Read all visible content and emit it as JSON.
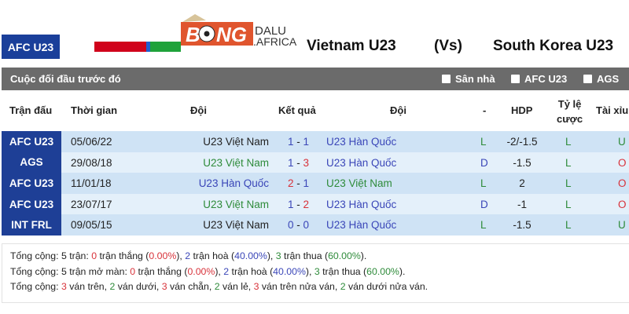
{
  "header": {
    "competition": "AFC U23",
    "logo_text": "BONGDALU AFRICA",
    "home": "Vietnam U23",
    "vs": "(Vs)",
    "away": "South Korea U23",
    "flag_colors": [
      "#d0021b",
      "#1f5fd0",
      "#1fa23a"
    ]
  },
  "section": {
    "title": "Cuộc đối đầu trước đó",
    "filters": [
      {
        "label": "Sân nhà",
        "checked": false
      },
      {
        "label": "AFC U23",
        "checked": false
      },
      {
        "label": "AGS",
        "checked": false
      }
    ]
  },
  "columns": {
    "match": "Trận đấu",
    "time": "Thời gian",
    "home": "Đội",
    "result": "Kết quả",
    "away": "Đội",
    "dash": "-",
    "hdp": "HDP",
    "odds_1": "Tỷ lệ",
    "odds_2": "cược",
    "ou": "Tài xỉu"
  },
  "rows": [
    {
      "comp": "AFC U23",
      "date": "05/06/22",
      "home": "U23 Việt Nam",
      "hc": "k",
      "hs": "1",
      "as": "1",
      "hsc": "b",
      "asc": "b",
      "away": "U23 Hàn Quốc",
      "ac": "b",
      "res": "L",
      "resc": "g",
      "hdp": "-2/-1.5",
      "odds": "L",
      "ou": "U",
      "ouc": "g"
    },
    {
      "comp": "AGS",
      "date": "29/08/18",
      "home": "U23 Việt Nam",
      "hc": "g",
      "hs": "1",
      "as": "3",
      "hsc": "b",
      "asc": "r",
      "away": "U23 Hàn Quốc",
      "ac": "b",
      "res": "D",
      "resc": "b",
      "hdp": "-1.5",
      "odds": "L",
      "ou": "O",
      "ouc": "r"
    },
    {
      "comp": "AFC U23",
      "date": "11/01/18",
      "home": "U23 Hàn Quốc",
      "hc": "b",
      "hs": "2",
      "as": "1",
      "hsc": "r",
      "asc": "b",
      "away": "U23 Việt Nam",
      "ac": "g",
      "res": "L",
      "resc": "g",
      "hdp": "2",
      "odds": "L",
      "ou": "O",
      "ouc": "r"
    },
    {
      "comp": "AFC U23",
      "date": "23/07/17",
      "home": "U23 Việt Nam",
      "hc": "g",
      "hs": "1",
      "as": "2",
      "hsc": "b",
      "asc": "r",
      "away": "U23 Hàn Quốc",
      "ac": "b",
      "res": "D",
      "resc": "b",
      "hdp": "-1",
      "odds": "L",
      "ou": "O",
      "ouc": "r"
    },
    {
      "comp": "INT FRL",
      "date": "09/05/15",
      "home": "U23 Việt Nam",
      "hc": "k",
      "hs": "0",
      "as": "0",
      "hsc": "b",
      "asc": "b",
      "away": "U23 Hàn Quốc",
      "ac": "b",
      "res": "L",
      "resc": "g",
      "hdp": "-1.5",
      "odds": "L",
      "ou": "U",
      "ouc": "g"
    }
  ],
  "summary": [
    [
      [
        "Tổng cộng: 5 trận: ",
        "k"
      ],
      [
        "0",
        "r"
      ],
      [
        " trận thắng (",
        "k"
      ],
      [
        "0.00%",
        "r"
      ],
      [
        "), ",
        "k"
      ],
      [
        "2",
        "b"
      ],
      [
        " trận hoà (",
        "k"
      ],
      [
        "40.00%",
        "b"
      ],
      [
        "), ",
        "k"
      ],
      [
        "3",
        "g"
      ],
      [
        " trận thua (",
        "k"
      ],
      [
        "60.00%",
        "g"
      ],
      [
        ").",
        "k"
      ]
    ],
    [
      [
        "Tổng cộng: 5 trận mở màn: ",
        "k"
      ],
      [
        "0",
        "r"
      ],
      [
        " trận thắng (",
        "k"
      ],
      [
        "0.00%",
        "r"
      ],
      [
        "), ",
        "k"
      ],
      [
        "2",
        "b"
      ],
      [
        " trận hoà (",
        "k"
      ],
      [
        "40.00%",
        "b"
      ],
      [
        "), ",
        "k"
      ],
      [
        "3",
        "g"
      ],
      [
        " trận thua (",
        "k"
      ],
      [
        "60.00%",
        "g"
      ],
      [
        ").",
        "k"
      ]
    ],
    [
      [
        "Tổng cộng: ",
        "k"
      ],
      [
        "3",
        "r"
      ],
      [
        " ván trên, ",
        "k"
      ],
      [
        "2",
        "g"
      ],
      [
        " ván dưới, ",
        "k"
      ],
      [
        "3",
        "r"
      ],
      [
        " ván chẵn, ",
        "k"
      ],
      [
        "2",
        "g"
      ],
      [
        " ván lẻ, ",
        "k"
      ],
      [
        "3",
        "r"
      ],
      [
        " ván trên nửa ván, ",
        "k"
      ],
      [
        "2",
        "g"
      ],
      [
        " ván dưới nửa ván.",
        "k"
      ]
    ]
  ]
}
